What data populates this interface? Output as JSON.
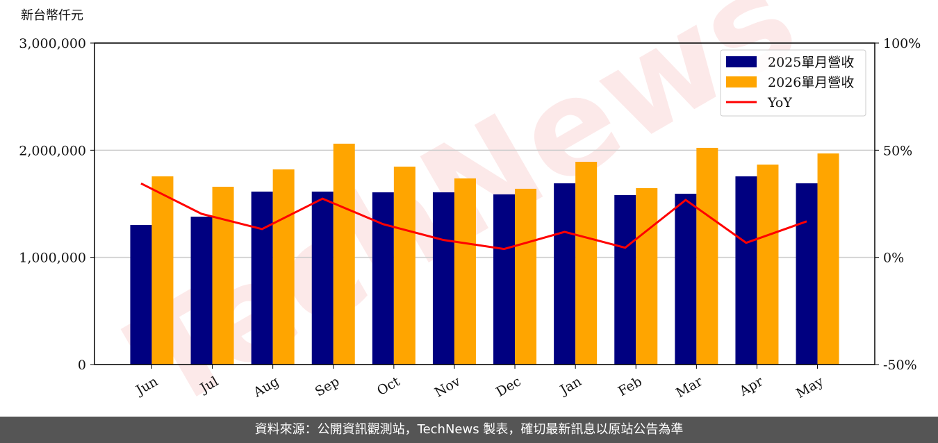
{
  "chart_data": {
    "type": "bar",
    "y_label": "新台幣仟元",
    "watermark": "TechNews",
    "categories": [
      "Jun",
      "Jul",
      "Aug",
      "Sep",
      "Oct",
      "Nov",
      "Dec",
      "Jan",
      "Feb",
      "Mar",
      "Apr",
      "May"
    ],
    "series": [
      {
        "name": "2025單月營收",
        "color": "#000080",
        "values": [
          1302000,
          1380000,
          1614000,
          1614000,
          1607000,
          1607000,
          1588000,
          1691000,
          1581000,
          1594000,
          1756000,
          1691000
        ]
      },
      {
        "name": "2026單月營收",
        "color": "#ffa500",
        "values": [
          1756000,
          1659000,
          1821000,
          2061000,
          1847000,
          1737000,
          1640000,
          1892000,
          1646000,
          2022000,
          1866000,
          1970000
        ]
      },
      {
        "name": "YoY",
        "type": "line",
        "axis": "y2",
        "color": "#ff0000",
        "values": [
          34.5,
          20.3,
          13.2,
          27.4,
          15.5,
          8.1,
          3.9,
          11.9,
          4.5,
          26.8,
          6.8,
          16.8
        ]
      }
    ],
    "ylim": [
      0,
      3000000
    ],
    "yticks": [
      {
        "value": 0,
        "label": "0"
      },
      {
        "value": 1000000,
        "label": "1,000,000"
      },
      {
        "value": 2000000,
        "label": "2,000,000"
      },
      {
        "value": 3000000,
        "label": "3,000,000"
      }
    ],
    "y2lim": [
      -50,
      100
    ],
    "y2ticks": [
      {
        "value": -50,
        "label": "-50%"
      },
      {
        "value": 0,
        "label": "0%"
      },
      {
        "value": 50,
        "label": "50%"
      },
      {
        "value": 100,
        "label": "100%"
      }
    ],
    "grid": true,
    "legend": "upper right"
  },
  "footer": "資料來源：公開資訊觀測站，TechNews 製表，確切最新訊息以原站公告為準"
}
